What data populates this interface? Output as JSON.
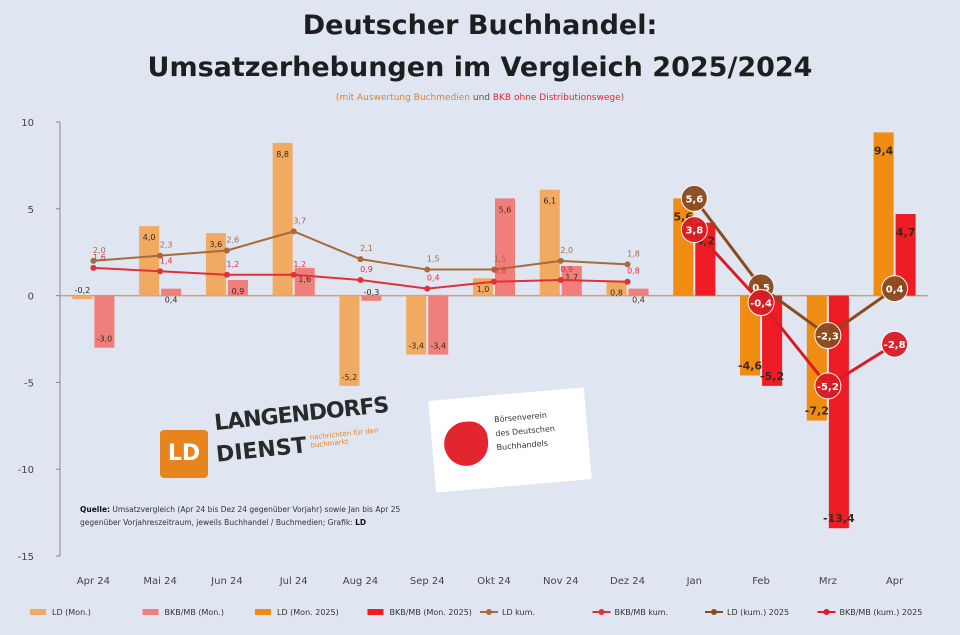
{
  "title_line1": "Deutscher Buchhandel:",
  "title_line2": "Umsatzerhebungen im Vergleich 2025/2024",
  "subtitle_part1": "(mit Auswertung Buchmedien",
  "subtitle_part2": "und",
  "subtitle_part3": "BKB ohne Distributionswege)",
  "logo_ld": {
    "mark": "LD",
    "line1": "LANGENDORFS",
    "line2": "DIENST",
    "tagline": "nachrichten für den buchmarkt"
  },
  "logo_boersenverein": [
    "Börsenverein",
    "des Deutschen",
    "Buchhandels"
  ],
  "source_note": {
    "label": "Quelle:",
    "text": "Umsatzvergleich (Apr 24 bis Dez 24 gegenüber Vorjahr) sowie Jan bis Apr 25 gegenüber Vorjahreszeitraum, jeweils Buchhandel / Buchmedien; Grafik:",
    "grafik": "LD"
  },
  "chart_data": {
    "type": "bar",
    "ylim": [
      -15,
      10
    ],
    "yticks": [
      "10",
      "5",
      "0",
      "-5",
      "-10",
      "-15"
    ],
    "categories": [
      "Apr 24",
      "Mai 24",
      "Jun 24",
      "Jul 24",
      "Aug 24",
      "Sep 24",
      "Okt 24",
      "Nov 24",
      "Dez 24",
      "Jan",
      "Feb",
      "Mrz",
      "Apr"
    ],
    "grid": false,
    "bar_series": [
      {
        "name": "LD (Mon.)",
        "color": "#f0aa62",
        "values": [
          -0.2,
          4.0,
          3.6,
          8.8,
          -5.2,
          -3.4,
          1.0,
          6.1,
          0.8,
          null,
          null,
          null,
          null
        ],
        "labels": [
          "-0,2",
          "4,0",
          "3,6",
          "8,8",
          "-5,2",
          "-3,4",
          "1,0",
          "6,1",
          "0,8",
          "",
          "",
          "",
          ""
        ]
      },
      {
        "name": "BKB/MB (Mon.)",
        "color": "#f07f7c",
        "values": [
          -3.0,
          0.4,
          0.9,
          1.6,
          -0.3,
          -3.4,
          5.6,
          1.7,
          0.4,
          null,
          null,
          null,
          null
        ],
        "labels": [
          "-3,0",
          "0,4",
          "0,9",
          "1,6",
          "-0,3",
          "-3,4",
          "5,6",
          "1,7",
          "0,4",
          "",
          "",
          "",
          ""
        ]
      },
      {
        "name": "LD (Mon. 2025)",
        "color": "#f08c12",
        "values": [
          null,
          null,
          null,
          null,
          null,
          null,
          null,
          null,
          null,
          5.6,
          -4.6,
          -7.2,
          9.4
        ],
        "labels": [
          "",
          "",
          "",
          "",
          "",
          "",
          "",
          "",
          "",
          "5,6",
          "-4,6",
          "-7,2",
          "9,4"
        ]
      },
      {
        "name": "BKB/MB (Mon. 2025)",
        "color": "#ee1c24",
        "values": [
          null,
          null,
          null,
          null,
          null,
          null,
          null,
          null,
          null,
          4.2,
          -5.2,
          -13.4,
          4.7
        ],
        "labels": [
          "",
          "",
          "",
          "",
          "",
          "",
          "",
          "",
          "",
          "4,2",
          "-5,2",
          "-13,4",
          "4,7"
        ]
      }
    ],
    "line_series": [
      {
        "name": "LD kum.",
        "color": "#a86a3a",
        "values": [
          2.0,
          2.3,
          2.6,
          3.7,
          2.1,
          1.5,
          1.5,
          2.0,
          1.8,
          null,
          null,
          null,
          null
        ],
        "labels": [
          "2,0",
          "2,3",
          "2,6",
          "3,7",
          "2,1",
          "1,5",
          "1,5",
          "2,0",
          "1,8",
          "",
          "",
          "",
          ""
        ]
      },
      {
        "name": "BKB/MB kum.",
        "color": "#e0303a",
        "values": [
          1.6,
          1.4,
          1.2,
          1.2,
          0.9,
          0.4,
          0.8,
          0.9,
          0.8,
          null,
          null,
          null,
          null
        ],
        "labels": [
          "1,6",
          "1,4",
          "1,2",
          "1,2",
          "0,9",
          "0,4",
          "0,8",
          "0,9",
          "0,8",
          "",
          "",
          "",
          ""
        ]
      },
      {
        "name": "LD (kum.) 2025",
        "color": "#8b4a1e",
        "values": [
          null,
          null,
          null,
          null,
          null,
          null,
          null,
          null,
          null,
          5.6,
          0.5,
          -2.3,
          0.4
        ],
        "labels": [
          "",
          "",
          "",
          "",
          "",
          "",
          "",
          "",
          "",
          "5,6",
          "0,5",
          "-2,3",
          "0,4"
        ],
        "marker": "big"
      },
      {
        "name": "BKB/MB (kum.) 2025",
        "color": "#d81b24",
        "values": [
          null,
          null,
          null,
          null,
          null,
          null,
          null,
          null,
          null,
          3.8,
          -0.4,
          -5.2,
          -2.8
        ],
        "labels": [
          "",
          "",
          "",
          "",
          "",
          "",
          "",
          "",
          "",
          "3,8",
          "-0,4",
          "-5,2",
          "-2,8"
        ],
        "marker": "big"
      }
    ],
    "legend_position": "bottom"
  }
}
